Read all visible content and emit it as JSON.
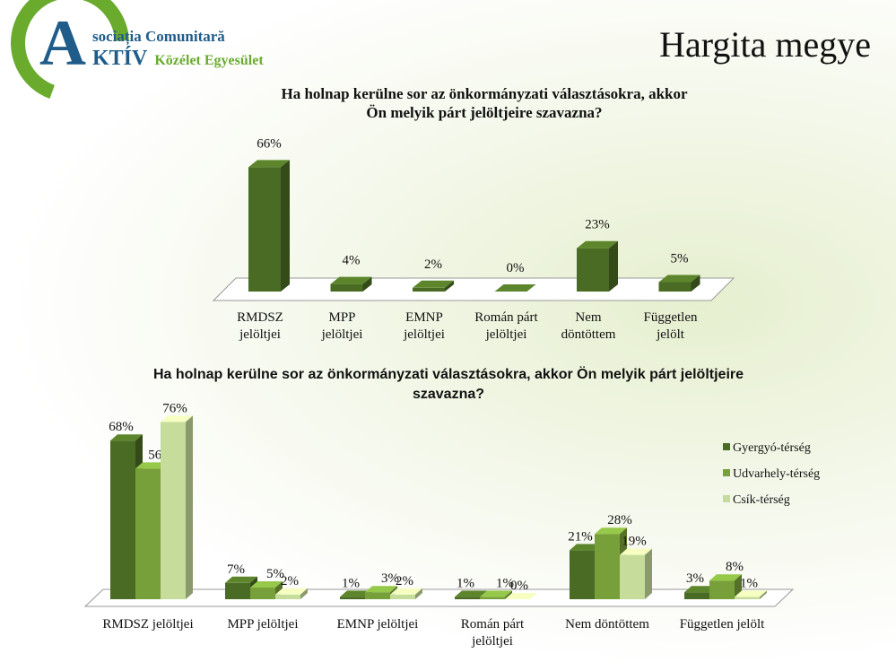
{
  "header": {
    "page_title": "Hargita megye",
    "logo": {
      "letter": "A",
      "line1": "sociația Comunitară",
      "line2_big": "KTÍV",
      "line2": "Közélet Egyesület"
    }
  },
  "colors": {
    "dark_green": "#4a6b23",
    "mid_green": "#78a03a",
    "light_green": "#c5dc9a",
    "logo_green": "#6aab2e",
    "logo_blue": "#1f5c8a"
  },
  "chart_data": [
    {
      "type": "bar",
      "title": "Ha holnap kerülne sor az önkormányzati választásokra, akkor Ön melyik párt jelöltjeire szavazna?",
      "title_lines": [
        "Ha holnap kerülne sor az önkormányzati választásokra,  akkor",
        "Ön melyik párt jelöltjeire szavazna?"
      ],
      "categories": [
        "RMDSZ jelöltjei",
        "MPP jelöltjei",
        "EMNP jelöltjei",
        "Román párt jelöltjei",
        "Nem döntöttem",
        "Független jelölt"
      ],
      "category_lines": [
        [
          "RMDSZ",
          "jelöltjei"
        ],
        [
          "MPP",
          "jelöltjei"
        ],
        [
          "EMNP",
          "jelöltjei"
        ],
        [
          "Román párt",
          "jelöltjei"
        ],
        [
          "Nem",
          "döntöttem"
        ],
        [
          "Független",
          "jelölt"
        ]
      ],
      "values": [
        66,
        4,
        2,
        0,
        23,
        5
      ],
      "data_labels": [
        "66%",
        "4%",
        "2%",
        "0%",
        "23%",
        "5%"
      ],
      "ylim": [
        0,
        70
      ],
      "grid": false
    },
    {
      "type": "bar",
      "title": "Ha holnap kerülne sor az önkormányzati választásokra, akkor Ön melyik párt jelöltjeire szavazna?",
      "title_lines": [
        "Ha holnap kerülne sor az önkormányzati választásokra, akkor Ön melyik párt jelöltjeire",
        "szavazna?"
      ],
      "categories": [
        "RMDSZ jelöltjei",
        "MPP jelöltjei",
        "EMNP jelöltjei",
        "Román párt jelöltjei",
        "Nem döntöttem",
        "Független jelölt"
      ],
      "category_lines": [
        [
          "RMDSZ jelöltjei"
        ],
        [
          "MPP jelöltjei"
        ],
        [
          "EMNP jelöltjei"
        ],
        [
          "Román párt",
          "jelöltjei"
        ],
        [
          "Nem döntöttem"
        ],
        [
          "Független jelölt"
        ]
      ],
      "series": [
        {
          "name": "Gyergyó-térség",
          "values": [
            68,
            7,
            1,
            1,
            21,
            3
          ],
          "labels": [
            "68%",
            "7%",
            "1%",
            "1%",
            "21%",
            "3%"
          ]
        },
        {
          "name": "Udvarhely-térség",
          "values": [
            56,
            5,
            3,
            1,
            28,
            8
          ],
          "labels": [
            "56%",
            "5%",
            "3%",
            "1%",
            "28%",
            "8%"
          ]
        },
        {
          "name": "Csík-térség",
          "values": [
            76,
            2,
            2,
            0,
            19,
            1
          ],
          "labels": [
            "76%",
            "2%",
            "2%",
            "0%",
            "19%",
            "1%"
          ]
        }
      ],
      "ylim": [
        0,
        80
      ],
      "legend": "right",
      "grid": false
    }
  ]
}
